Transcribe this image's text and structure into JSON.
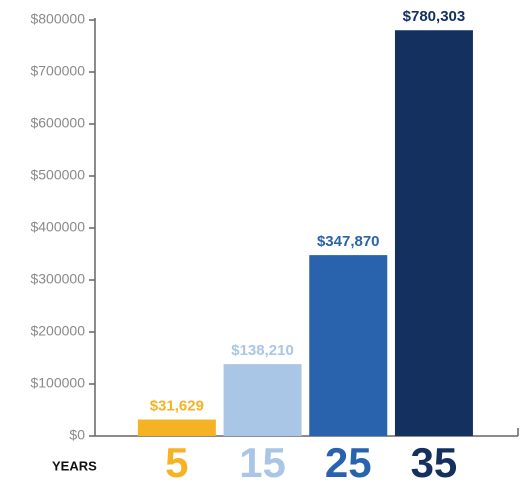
{
  "chart_data": {
    "type": "bar",
    "x_label": "YEARS",
    "categories": [
      "5",
      "15",
      "25",
      "35"
    ],
    "values": [
      31629,
      138210,
      347870,
      780303
    ],
    "value_labels": [
      "$31,629",
      "$138,210",
      "$347,870",
      "$780,303"
    ],
    "colors": [
      "#f5b323",
      "#a9c6e6",
      "#2a63ad",
      "#13305f"
    ],
    "ylim": [
      0,
      800000
    ],
    "yticks": [
      {
        "value": 0,
        "label": "$0"
      },
      {
        "value": 100000,
        "label": "$100000"
      },
      {
        "value": 200000,
        "label": "$200000"
      },
      {
        "value": 300000,
        "label": "$300000"
      },
      {
        "value": 400000,
        "label": "$400000"
      },
      {
        "value": 500000,
        "label": "$500000"
      },
      {
        "value": 600000,
        "label": "$600000"
      },
      {
        "value": 700000,
        "label": "$700000"
      },
      {
        "value": 800000,
        "label": "$800000"
      }
    ]
  }
}
